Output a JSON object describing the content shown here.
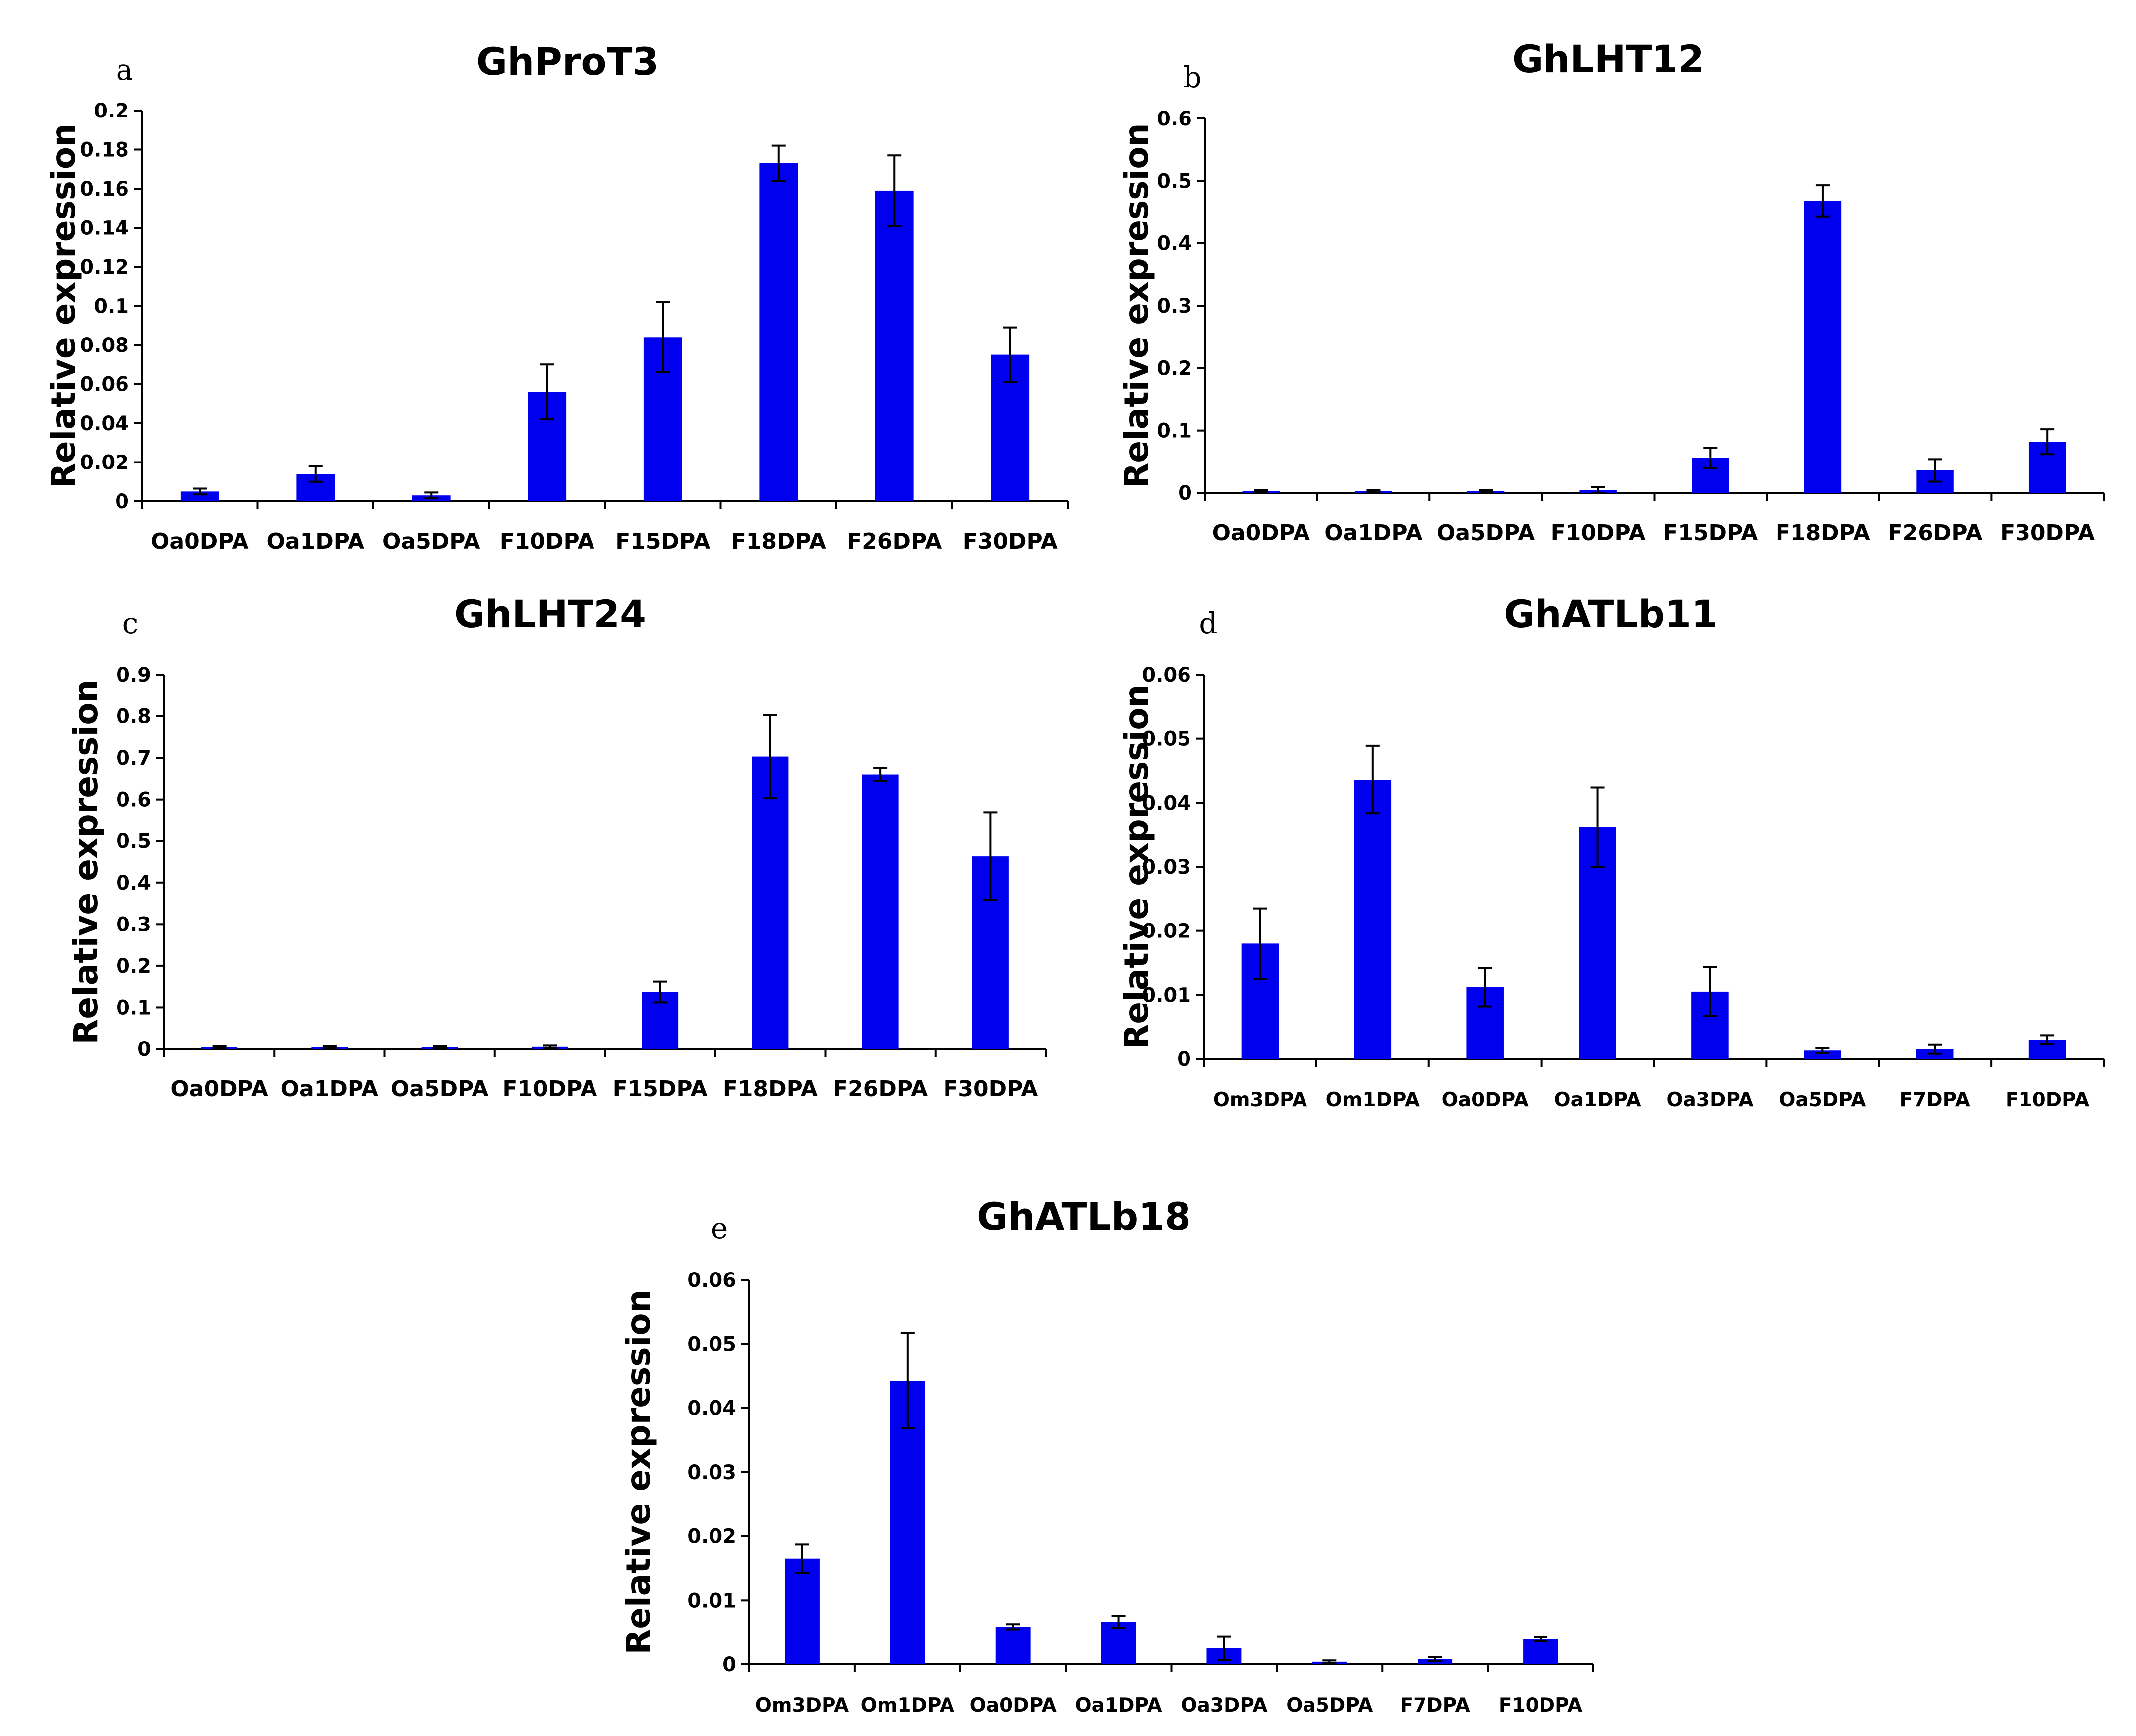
{
  "chart_data": [
    {
      "panel": "a",
      "type": "bar",
      "title": "GhProT3",
      "xlabel": "",
      "ylabel": "Relative expression",
      "ylim": [
        0,
        0.2
      ],
      "yticks": [
        "0",
        "0.02",
        "0.04",
        "0.06",
        "0.08",
        "0.1",
        "0.12",
        "0.14",
        "0.16",
        "0.18",
        "0.2"
      ],
      "categories": [
        "Oa0DPA",
        "Oa1DPA",
        "Oa5DPA",
        "F10DPA",
        "F15DPA",
        "F18DPA",
        "F26DPA",
        "F30DPA"
      ],
      "values": [
        0.005,
        0.014,
        0.003,
        0.056,
        0.084,
        0.173,
        0.159,
        0.075
      ],
      "errors": [
        0.0015,
        0.004,
        0.0015,
        0.014,
        0.018,
        0.009,
        0.018,
        0.014
      ],
      "bar_color": "#0000ee"
    },
    {
      "panel": "b",
      "type": "bar",
      "title": "GhLHT12",
      "xlabel": "",
      "ylabel": "Relative expression",
      "ylim": [
        0,
        0.6
      ],
      "yticks": [
        "0",
        "0.1",
        "0.2",
        "0.3",
        "0.4",
        "0.5",
        "0.6"
      ],
      "categories": [
        "Oa0DPA",
        "Oa1DPA",
        "Oa5DPA",
        "F10DPA",
        "F15DPA",
        "F18DPA",
        "F26DPA",
        "F30DPA"
      ],
      "values": [
        0.003,
        0.003,
        0.003,
        0.004,
        0.056,
        0.468,
        0.036,
        0.082
      ],
      "errors": [
        0.0015,
        0.0015,
        0.0015,
        0.005,
        0.016,
        0.025,
        0.018,
        0.02
      ],
      "bar_color": "#0000ee"
    },
    {
      "panel": "c",
      "type": "bar",
      "title": "GhLHT24",
      "xlabel": "",
      "ylabel": "Relative expression",
      "ylim": [
        0,
        0.9
      ],
      "yticks": [
        "0",
        "0.1",
        "0.2",
        "0.3",
        "0.4",
        "0.5",
        "0.6",
        "0.7",
        "0.8",
        "0.9"
      ],
      "categories": [
        "Oa0DPA",
        "Oa1DPA",
        "Oa5DPA",
        "F10DPA",
        "F15DPA",
        "F18DPA",
        "F26DPA",
        "F30DPA"
      ],
      "values": [
        0.004,
        0.004,
        0.004,
        0.005,
        0.137,
        0.703,
        0.66,
        0.463
      ],
      "errors": [
        0.002,
        0.002,
        0.002,
        0.003,
        0.025,
        0.1,
        0.015,
        0.105
      ],
      "bar_color": "#0000ee"
    },
    {
      "panel": "d",
      "type": "bar",
      "title": "GhATLb11",
      "xlabel": "",
      "ylabel": "Relative expression",
      "ylim": [
        0,
        0.06
      ],
      "yticks": [
        "0",
        "0.01",
        "0.02",
        "0.03",
        "0.04",
        "0.05",
        "0.06"
      ],
      "categories": [
        "Om3DPA",
        "Om1DPA",
        "Oa0DPA",
        "Oa1DPA",
        "Oa3DPA",
        "Oa5DPA",
        "F7DPA",
        "F10DPA"
      ],
      "values": [
        0.018,
        0.0436,
        0.0112,
        0.0362,
        0.0105,
        0.0013,
        0.0015,
        0.003
      ],
      "errors": [
        0.0055,
        0.0053,
        0.003,
        0.0062,
        0.0038,
        0.0004,
        0.0007,
        0.0007
      ],
      "bar_color": "#0000ee"
    },
    {
      "panel": "e",
      "type": "bar",
      "title": "GhATLb18",
      "xlabel": "",
      "ylabel": "Relative expression",
      "ylim": [
        0,
        0.06
      ],
      "yticks": [
        "0",
        "0.01",
        "0.02",
        "0.03",
        "0.04",
        "0.05",
        "0.06"
      ],
      "categories": [
        "Om3DPA",
        "Om1DPA",
        "Oa0DPA",
        "Oa1DPA",
        "Oa3DPA",
        "Oa5DPA",
        "F7DPA",
        "F10DPA"
      ],
      "values": [
        0.0165,
        0.0443,
        0.0058,
        0.0066,
        0.0025,
        0.0004,
        0.0008,
        0.0039
      ],
      "errors": [
        0.0022,
        0.0074,
        0.0004,
        0.001,
        0.0018,
        0.0002,
        0.0003,
        0.0003
      ],
      "bar_color": "#0000ee"
    }
  ]
}
